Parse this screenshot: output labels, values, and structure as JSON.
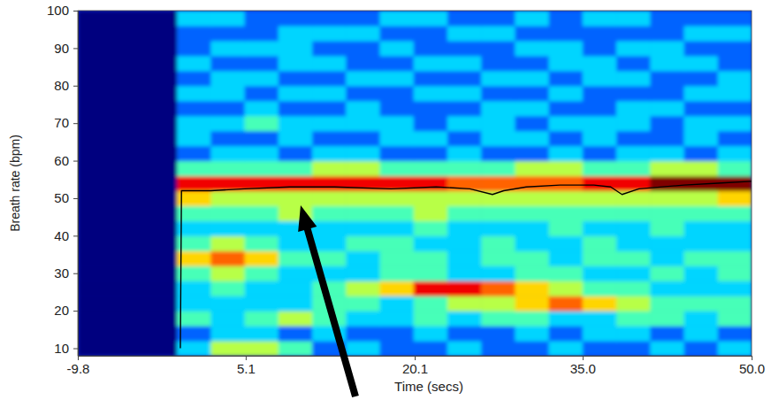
{
  "chart_data": {
    "type": "heatmap",
    "x_label": "Time (secs)",
    "y_label": "Breath rate (bpm)",
    "xlim": [
      -9.8,
      50
    ],
    "ylim": [
      8,
      100
    ],
    "xticks": [
      -9.8,
      5.1,
      20.1,
      {
        "value": 35,
        "label": "35.0"
      },
      {
        "value": 50,
        "label": "50.0"
      }
    ],
    "yticks": [
      10,
      20,
      30,
      40,
      50,
      60,
      70,
      80,
      90,
      100
    ],
    "x_edges": [
      -9.8,
      -1,
      2,
      5,
      8,
      11,
      14,
      17,
      20,
      23,
      26,
      29,
      32,
      35,
      38,
      41,
      44,
      47,
      50
    ],
    "y_edges": [
      8,
      12,
      16,
      20,
      24,
      28,
      32,
      36,
      40,
      44,
      48,
      52,
      56,
      60,
      64,
      68,
      72,
      76,
      80,
      84,
      88,
      92,
      96,
      100
    ],
    "zlim": [
      0,
      9
    ],
    "z": [
      [
        0,
        3,
        5,
        5,
        4,
        2,
        3,
        2,
        2,
        3,
        2,
        2,
        3,
        2,
        2,
        3,
        2,
        3
      ],
      [
        0,
        2,
        3,
        3,
        2,
        3,
        2,
        2,
        3,
        2,
        2,
        3,
        2,
        3,
        3,
        2,
        3,
        2
      ],
      [
        0,
        4,
        3,
        4,
        5,
        4,
        3,
        3,
        4,
        3,
        4,
        4,
        3,
        3,
        4,
        4,
        3,
        4
      ],
      [
        0,
        3,
        3,
        3,
        3,
        4,
        4,
        3,
        4,
        5,
        5,
        6,
        7,
        6,
        5,
        4,
        4,
        4
      ],
      [
        0,
        3,
        4,
        3,
        3,
        4,
        5,
        6,
        8,
        8,
        7,
        6,
        5,
        4,
        4,
        3,
        3,
        3
      ],
      [
        0,
        4,
        5,
        4,
        3,
        3,
        3,
        4,
        4,
        3,
        3,
        4,
        4,
        3,
        3,
        4,
        3,
        4
      ],
      [
        0,
        6,
        7,
        6,
        4,
        4,
        3,
        4,
        4,
        3,
        4,
        4,
        3,
        4,
        4,
        3,
        4,
        4
      ],
      [
        0,
        4,
        5,
        4,
        3,
        3,
        4,
        4,
        3,
        3,
        4,
        3,
        3,
        4,
        3,
        3,
        3,
        3
      ],
      [
        0,
        3,
        3,
        3,
        3,
        3,
        3,
        3,
        4,
        3,
        3,
        3,
        4,
        3,
        3,
        4,
        3,
        3
      ],
      [
        0,
        4,
        4,
        4,
        5,
        4,
        4,
        4,
        5,
        4,
        4,
        4,
        4,
        4,
        4,
        4,
        4,
        4
      ],
      [
        0,
        6,
        5,
        5,
        5,
        5,
        5,
        5,
        5,
        5,
        5,
        5,
        5,
        5,
        5,
        5,
        5,
        6
      ],
      [
        0,
        8,
        8,
        8,
        8,
        8,
        8,
        8,
        8,
        7,
        7,
        7,
        7,
        8,
        8,
        9,
        9,
        9
      ],
      [
        0,
        4,
        4,
        4,
        4,
        5,
        5,
        4,
        4,
        4,
        4,
        5,
        5,
        4,
        4,
        5,
        5,
        4
      ],
      [
        0,
        2,
        3,
        3,
        2,
        3,
        3,
        2,
        2,
        3,
        2,
        2,
        3,
        2,
        3,
        3,
        2,
        3
      ],
      [
        0,
        3,
        2,
        2,
        3,
        2,
        2,
        3,
        3,
        2,
        3,
        3,
        2,
        3,
        2,
        2,
        3,
        2
      ],
      [
        0,
        3,
        3,
        4,
        3,
        3,
        3,
        3,
        2,
        3,
        3,
        2,
        3,
        3,
        3,
        2,
        3,
        3
      ],
      [
        0,
        2,
        2,
        3,
        2,
        2,
        3,
        2,
        2,
        2,
        3,
        3,
        2,
        2,
        3,
        3,
        2,
        2
      ],
      [
        0,
        3,
        3,
        2,
        3,
        3,
        2,
        2,
        3,
        3,
        2,
        2,
        3,
        2,
        2,
        2,
        3,
        3
      ],
      [
        0,
        2,
        3,
        3,
        2,
        2,
        3,
        3,
        2,
        2,
        3,
        3,
        2,
        3,
        3,
        2,
        2,
        3
      ],
      [
        0,
        3,
        2,
        2,
        3,
        3,
        2,
        2,
        3,
        3,
        2,
        2,
        3,
        3,
        2,
        3,
        3,
        2
      ],
      [
        0,
        2,
        3,
        3,
        3,
        2,
        2,
        3,
        2,
        2,
        2,
        3,
        3,
        2,
        3,
        3,
        2,
        2
      ],
      [
        0,
        2,
        2,
        2,
        3,
        3,
        3,
        2,
        2,
        3,
        3,
        2,
        2,
        2,
        2,
        2,
        3,
        3
      ],
      [
        0,
        3,
        3,
        2,
        2,
        2,
        2,
        3,
        3,
        2,
        2,
        3,
        2,
        3,
        3,
        2,
        2,
        2
      ]
    ],
    "series": [
      {
        "type": "line",
        "color": "#000000",
        "x": [
          -0.7,
          -0.6,
          2,
          5,
          9,
          13,
          18,
          22,
          25,
          27,
          28,
          30,
          33,
          36,
          37.5,
          38.5,
          40,
          44,
          47,
          50
        ],
        "values": [
          10,
          52,
          52,
          52.5,
          53,
          53,
          52.5,
          53,
          52.5,
          51,
          52,
          53,
          53.5,
          53.5,
          53,
          51,
          52.5,
          53.5,
          54,
          54.5
        ]
      }
    ]
  }
}
